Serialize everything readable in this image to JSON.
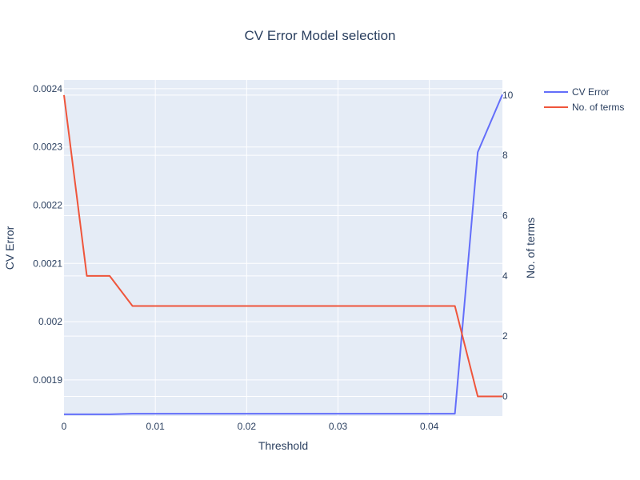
{
  "chart_data": {
    "type": "line",
    "title": "CV Error Model selection",
    "xlabel": "Threshold",
    "ylabel": "CV Error",
    "y2label": "No. of terms",
    "xlim": [
      0,
      0.048
    ],
    "ylim": [
      0.001838,
      0.002415
    ],
    "y2lim": [
      -0.65,
      10.5
    ],
    "xticks": [
      0,
      0.01,
      0.02,
      0.03,
      0.04
    ],
    "xtick_labels": [
      "0",
      "0.01",
      "0.02",
      "0.03",
      "0.04"
    ],
    "yticks": [
      0.0019,
      0.002,
      0.0021,
      0.0022,
      0.0023,
      0.0024
    ],
    "ytick_labels": [
      "0.0019",
      "0.002",
      "0.0021",
      "0.0022",
      "0.0023",
      "0.0024"
    ],
    "y2ticks": [
      0,
      2,
      4,
      6,
      8,
      10
    ],
    "y2tick_labels": [
      "0",
      "2",
      "4",
      "6",
      "8",
      "10"
    ],
    "grid": true,
    "legend_position": "top-right",
    "background_color": "#e5ecf6",
    "series": [
      {
        "name": "CV Error",
        "axis": "y",
        "color": "#636efa",
        "x": [
          0,
          0.0025,
          0.005,
          0.0075,
          0.01,
          0.02,
          0.03,
          0.04,
          0.0428,
          0.0453,
          0.048
        ],
        "values": [
          0.001841,
          0.001841,
          0.001841,
          0.001842,
          0.001842,
          0.001842,
          0.001842,
          0.001842,
          0.001842,
          0.002291,
          0.00239
        ]
      },
      {
        "name": "No. of terms",
        "axis": "y2",
        "color": "#ef553b",
        "x": [
          0,
          0.0025,
          0.005,
          0.0075,
          0.01,
          0.02,
          0.03,
          0.04,
          0.0428,
          0.0453,
          0.048
        ],
        "values": [
          10,
          4,
          4,
          3,
          3,
          3,
          3,
          3,
          3,
          0,
          0
        ]
      }
    ]
  }
}
